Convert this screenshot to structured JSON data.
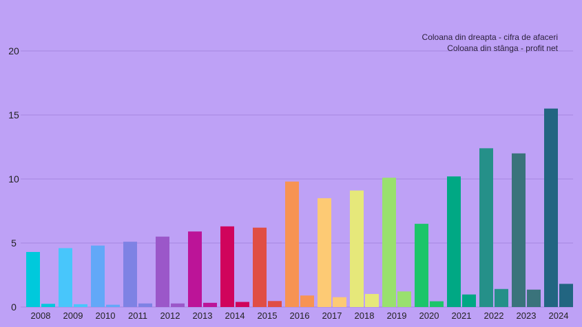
{
  "chart_data": {
    "type": "bar",
    "title": "",
    "xlabel": "",
    "ylabel": "",
    "ylim": [
      0,
      20
    ],
    "yticks": [
      0,
      5,
      10,
      15,
      20
    ],
    "grid": true,
    "legend_placement": "top-right",
    "legend": [
      "Coloana din dreapta - cifra de afaceri",
      "Coloana din stânga - profit net"
    ],
    "categories": [
      "2008",
      "2009",
      "2010",
      "2011",
      "2012",
      "2013",
      "2014",
      "2015",
      "2016",
      "2017",
      "2018",
      "2019",
      "2020",
      "2021",
      "2022",
      "2023",
      "2024"
    ],
    "series": [
      {
        "values": [
          4.3,
          4.6,
          4.8,
          5.1,
          5.5,
          5.9,
          6.3,
          6.2,
          9.8,
          8.5,
          9.1,
          10.1,
          6.5,
          10.2,
          12.4,
          12.0,
          15.5
        ]
      },
      {
        "values": [
          0.25,
          0.22,
          0.18,
          0.28,
          0.28,
          0.33,
          0.4,
          0.47,
          0.9,
          0.77,
          1.02,
          1.22,
          0.45,
          0.98,
          1.41,
          1.36,
          1.81
        ]
      }
    ],
    "colors": [
      "#00c9dc",
      "#48c6fb",
      "#62a8f8",
      "#7e82e4",
      "#9b57c9",
      "#bc1498",
      "#d0045c",
      "#e04e44",
      "#f79353",
      "#fdca74",
      "#e6e87a",
      "#99e06e",
      "#1cc56a",
      "#00a884",
      "#259089",
      "#3a737b",
      "#226581"
    ],
    "background": "#bea1f6"
  }
}
